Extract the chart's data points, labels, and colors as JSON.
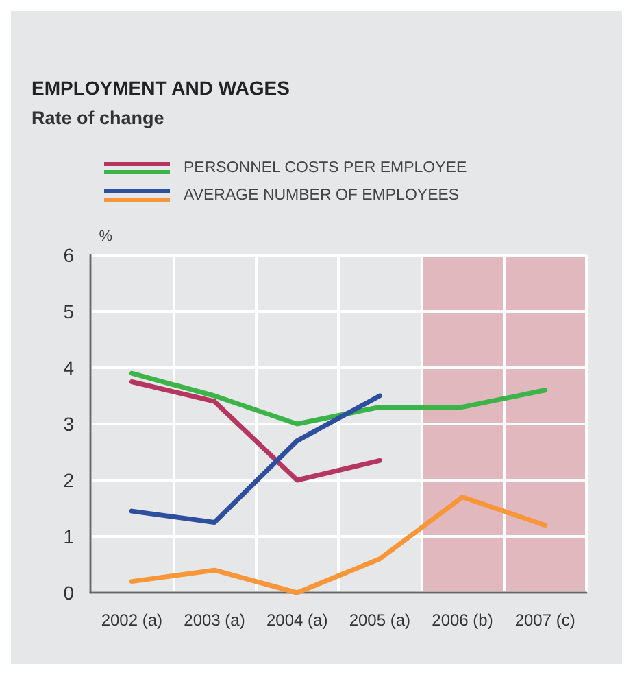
{
  "chart_data": {
    "type": "line",
    "title": "EMPLOYMENT AND WAGES",
    "subtitle": "Rate of change",
    "ylabel": "%",
    "categories": [
      "2002 (a)",
      "2003 (a)",
      "2004 (a)",
      "2005 (a)",
      "2006 (b)",
      "2007 (c)"
    ],
    "series": [
      {
        "name": "PERSONNEL COSTS PER EMPLOYEE",
        "color": "#b5365e",
        "values": [
          3.75,
          3.4,
          2.0,
          2.35,
          null,
          null
        ]
      },
      {
        "color": "#3cb44a",
        "values": [
          3.9,
          3.5,
          3.0,
          3.3,
          3.3,
          3.6
        ]
      },
      {
        "name": "AVERAGE NUMBER OF EMPLOYEES",
        "color": "#2e4f9e",
        "values": [
          1.45,
          1.25,
          2.7,
          3.5,
          null,
          null
        ]
      },
      {
        "color": "#f7973a",
        "values": [
          0.2,
          0.4,
          0.0,
          0.6,
          1.7,
          1.2
        ]
      }
    ],
    "ylim": [
      0,
      6
    ],
    "yticks": [
      0,
      1,
      2,
      3,
      4,
      5,
      6
    ],
    "grid": true,
    "legend": "top",
    "marker": "none",
    "line_style": "solid",
    "bands": [
      {
        "axis": "x",
        "from": "2006 (b)",
        "to": "2007 (c)",
        "color": "#e2b8bf"
      }
    ]
  }
}
